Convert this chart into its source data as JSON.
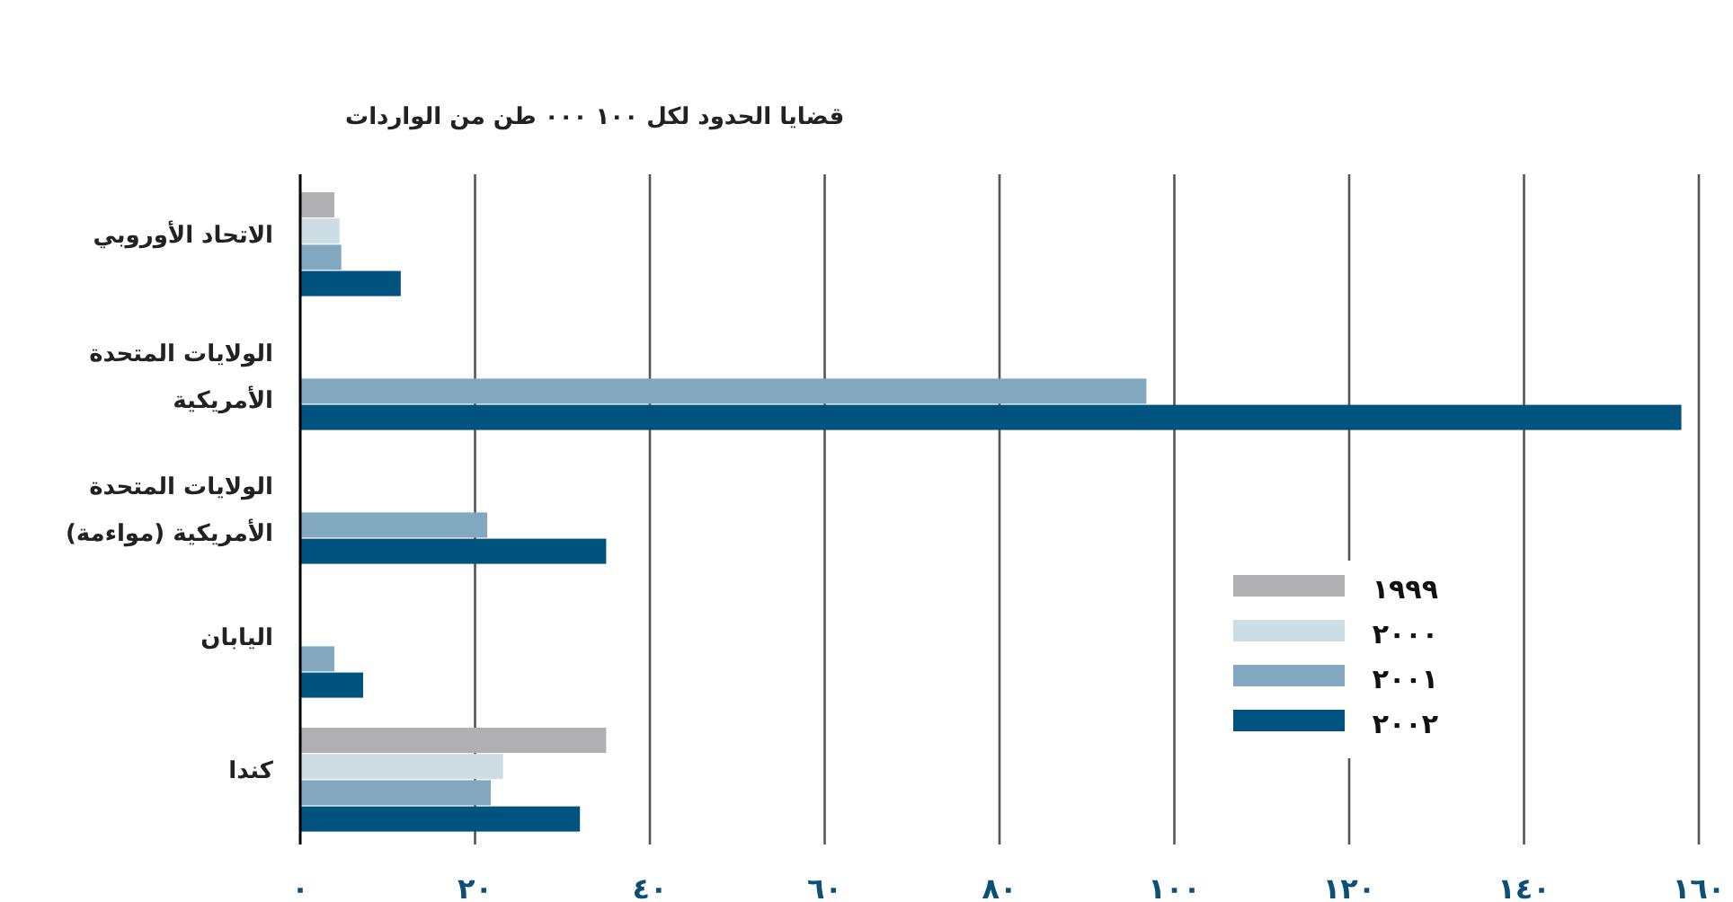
{
  "chart_data": {
    "type": "bar",
    "orientation": "horizontal",
    "title": "قضايا الحدود لكل ١٠٠ ٠٠٠ طن من الواردات",
    "categories": [
      "الاتحاد الأوروبي",
      "الولايات المتحدة الأمريكية",
      "الولايات المتحدة الأمريكية (مواءمة)",
      "اليابان",
      "كندا"
    ],
    "series": [
      {
        "name": "١٩٩٩",
        "color": "#b0b0b2",
        "values": [
          3.9,
          null,
          null,
          null,
          35
        ]
      },
      {
        "name": "٢٠٠٠",
        "color": "#cddde5",
        "values": [
          4.5,
          null,
          null,
          null,
          23.2
        ]
      },
      {
        "name": "٢٠٠١",
        "color": "#82a8bf",
        "values": [
          4.7,
          96.8,
          21.4,
          3.9,
          21.8
        ]
      },
      {
        "name": "٢٠٠٢",
        "color": "#01537f",
        "values": [
          11.5,
          158,
          35,
          7.2,
          32
        ]
      }
    ],
    "xlim": [
      0,
      160
    ],
    "xticks": [
      {
        "value": 0,
        "label": "٠"
      },
      {
        "value": 20,
        "label": "٢٠"
      },
      {
        "value": 40,
        "label": "٤٠"
      },
      {
        "value": 60,
        "label": "٦٠"
      },
      {
        "value": 80,
        "label": "٨٠"
      },
      {
        "value": 100,
        "label": "١٠٠"
      },
      {
        "value": 120,
        "label": "١٢٠"
      },
      {
        "value": 140,
        "label": "١٤٠"
      },
      {
        "value": 160,
        "label": "١٦٠"
      }
    ],
    "grid": "x",
    "legend": "bottom right"
  }
}
